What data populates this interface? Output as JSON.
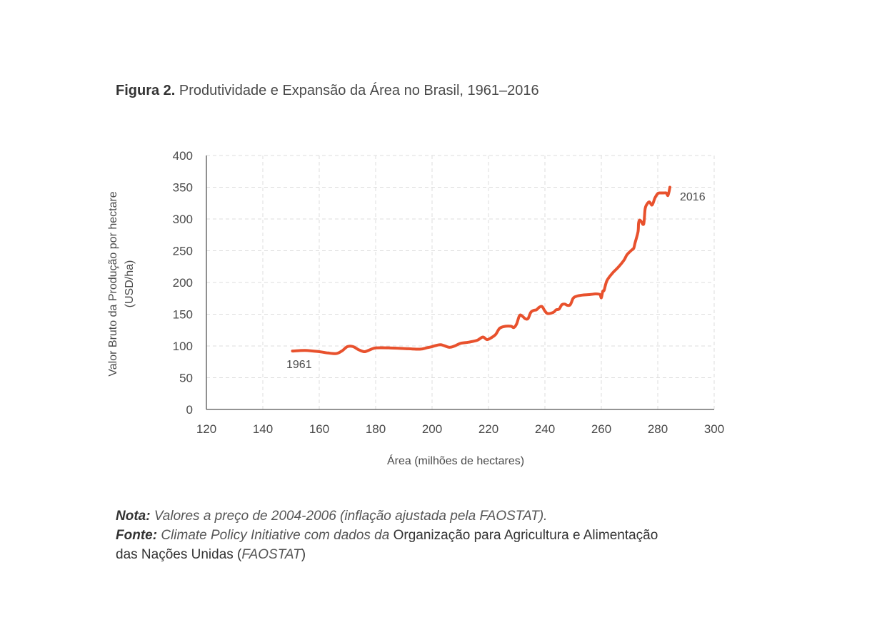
{
  "figure": {
    "label": "Figura 2.",
    "title": "Produtividade e Expansão da Área no Brasil, 1961–2016"
  },
  "chart_data": {
    "type": "line",
    "xlabel": "Área (milhões de hectares)",
    "ylabel_line1": "Valor Bruto da Produção por hectare",
    "ylabel_line2": "(USD/ha)",
    "xlim": [
      120,
      300
    ],
    "ylim": [
      0,
      400
    ],
    "xticks": [
      120,
      140,
      160,
      180,
      200,
      220,
      240,
      260,
      280,
      300
    ],
    "yticks": [
      0,
      50,
      100,
      150,
      200,
      250,
      300,
      350,
      400
    ],
    "grid": true,
    "line_color": "#e8512d",
    "annotations": {
      "start": "1961",
      "end": "2016"
    },
    "series": [
      {
        "x": [
          150.5,
          155,
          160,
          163,
          166,
          168,
          170,
          172,
          174,
          176,
          178,
          180,
          185,
          190,
          194,
          196,
          198,
          200,
          203,
          206,
          208,
          210,
          213,
          216,
          218,
          219.5,
          221,
          222.5,
          224,
          226,
          228,
          229,
          230,
          231,
          232,
          233,
          234,
          235,
          236,
          237,
          238,
          239,
          240,
          241,
          243,
          244,
          245,
          246,
          247,
          248,
          249,
          250,
          251,
          253,
          256,
          258,
          259.5,
          260,
          260.5,
          261,
          262,
          264,
          266,
          268,
          269,
          270,
          271,
          271.5,
          272,
          273,
          273.2,
          273.5,
          274,
          275,
          275.5,
          276,
          277,
          278,
          279,
          280,
          281,
          282,
          283,
          283.3,
          283.6,
          284,
          284.3
        ],
        "y": [
          92,
          93,
          91,
          89,
          88,
          92,
          99,
          99,
          94,
          91,
          94,
          97,
          97,
          96,
          95,
          95,
          97,
          99,
          102,
          98,
          100,
          104,
          106,
          109,
          114,
          110,
          113,
          118,
          128,
          131,
          131,
          129,
          135,
          148,
          147,
          143,
          143,
          153,
          156,
          157,
          161,
          162,
          155,
          151,
          153,
          157,
          158,
          165,
          166,
          164,
          165,
          175,
          178,
          180,
          181,
          182,
          181,
          176,
          186,
          188,
          203,
          215,
          224,
          235,
          243,
          248,
          252,
          254,
          263,
          280,
          293,
          298,
          297,
          292,
          315,
          322,
          327,
          322,
          333,
          340,
          341,
          341,
          341,
          339,
          337,
          343,
          350
        ]
      }
    ]
  },
  "notes": {
    "nota_label": "Nota:",
    "nota_text": " Valores a preço de 2004-2006 (inflação ajustada pela FAOSTAT).",
    "fonte_label": "Fonte:",
    "fonte_text": " Climate Policy Initiative com dados da ",
    "fonte_org_line1": "Organização para Agricultura e Alimentação",
    "fonte_org_line2": "das Nações Unidas (",
    "fonte_abbr": "FAOSTAT",
    "fonte_close": ")"
  }
}
